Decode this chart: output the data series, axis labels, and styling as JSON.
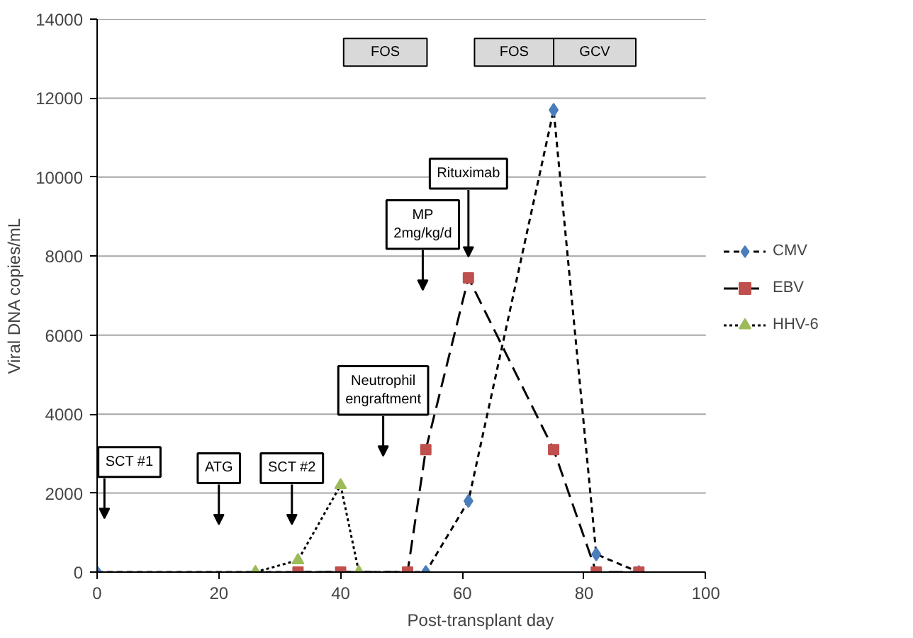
{
  "chart_data": {
    "type": "line",
    "xlabel": "Post-transplant day",
    "ylabel": "Viral DNA copies/mL",
    "xlim": [
      0,
      100
    ],
    "xticks": [
      0,
      20,
      40,
      60,
      80,
      100
    ],
    "ylim": [
      0,
      14000
    ],
    "yticks": [
      0,
      2000,
      4000,
      6000,
      8000,
      10000,
      12000,
      14000
    ],
    "grid": "y",
    "legend": "right",
    "series": [
      {
        "name": "CMV",
        "color": "#4a7ebb",
        "marker": "diamond",
        "line_style": "dashed",
        "x": [
          0,
          54,
          61,
          75,
          82,
          89
        ],
        "values": [
          0,
          0,
          1800,
          11700,
          450,
          0
        ]
      },
      {
        "name": "EBV",
        "color": "#c0504d",
        "marker": "square",
        "line_style": "dashed",
        "x": [
          33,
          40,
          51,
          54,
          61,
          75,
          82,
          89
        ],
        "values": [
          0,
          0,
          0,
          3100,
          7450,
          3100,
          0,
          0
        ]
      },
      {
        "name": "HHV-6",
        "color": "#9bbb59",
        "marker": "triangle",
        "line_style": "dotted",
        "x": [
          26,
          33,
          40,
          43
        ],
        "values": [
          0,
          300,
          2200,
          0
        ]
      }
    ],
    "bands": [
      {
        "axis": "x",
        "from": 40.5,
        "to": 54.2,
        "label": "FOS",
        "color": "#d9d9d9"
      },
      {
        "axis": "x",
        "from": 62,
        "to": 75,
        "label": "FOS",
        "color": "#d9d9d9"
      },
      {
        "axis": "x",
        "from": 75,
        "to": 88.5,
        "label": "GCV",
        "color": "#d9d9d9"
      }
    ],
    "annotations": [
      "SCT #1",
      "ATG",
      "SCT #2",
      "Neutrophil\nengraftment",
      "MP\n2mg/kg/d",
      "Rituximab"
    ]
  }
}
